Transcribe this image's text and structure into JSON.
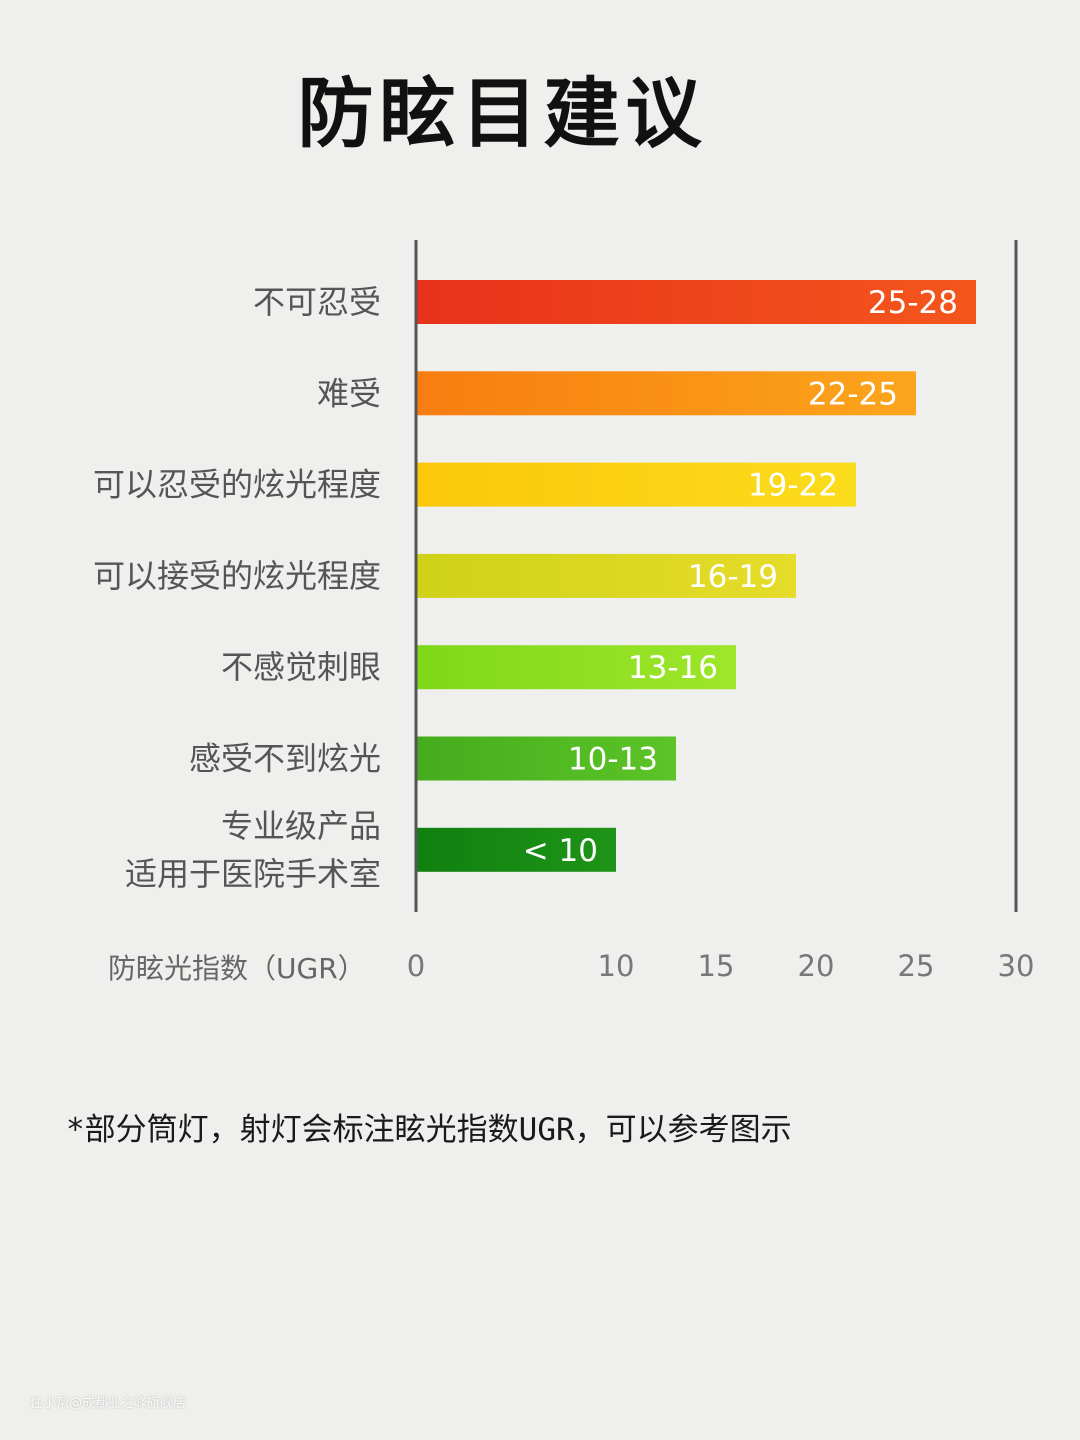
{
  "title": "防眩目建议",
  "note": "*部分筒灯，射灯会标注眩光指数UGR，可以参考图示",
  "watermark": "住小帮@成都业之峰旗舰店",
  "chart_data": {
    "type": "bar",
    "orientation": "horizontal",
    "xlabel": "防眩光指数（UGR）",
    "xlim": [
      0,
      30
    ],
    "xticks": [
      0,
      10,
      15,
      20,
      25,
      30
    ],
    "categories": [
      [
        "不可忍受"
      ],
      [
        "难受"
      ],
      [
        "可以忍受的炫光程度"
      ],
      [
        "可以接受的炫光程度"
      ],
      [
        "不感觉刺眼"
      ],
      [
        "感受不到炫光"
      ],
      [
        "专业级产品",
        "适用于医院手术室"
      ]
    ],
    "values": [
      28,
      25,
      22,
      19,
      16,
      13,
      10
    ],
    "value_labels": [
      "25-28",
      "22-25",
      "19-22",
      "16-19",
      "13-16",
      "10-13",
      "< 10"
    ],
    "colors": [
      [
        "#e8321b",
        "#f4561c"
      ],
      [
        "#f77d10",
        "#fca51c"
      ],
      [
        "#fbc70a",
        "#fbdc1c"
      ],
      [
        "#cfd218",
        "#e6dc2a"
      ],
      [
        "#7fd81a",
        "#9ee62a"
      ],
      [
        "#45ad1d",
        "#5cc427"
      ],
      [
        "#10800f",
        "#1f9418"
      ]
    ],
    "grid": false
  }
}
